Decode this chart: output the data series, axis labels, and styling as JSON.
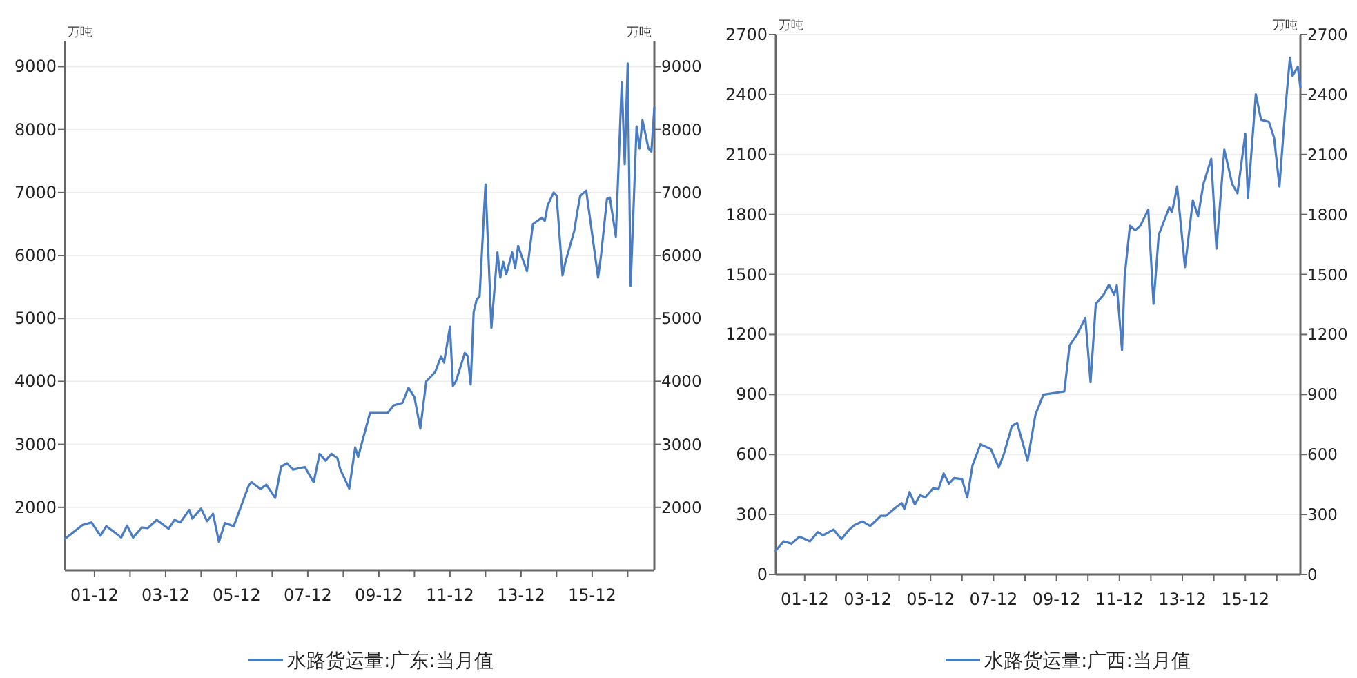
{
  "chart_data": [
    {
      "type": "line",
      "ylabel": "万吨",
      "y2label": "万吨",
      "legend": "bottom",
      "grid": "y",
      "marker": "none",
      "line_style": "solid",
      "xlim": [
        "2001-02",
        "2017-09"
      ],
      "xticks": [
        {
          "value": "2001-12",
          "label": "01-12"
        },
        {
          "value": "2002-12",
          "label": null
        },
        {
          "value": "2003-12",
          "label": "03-12"
        },
        {
          "value": "2004-12",
          "label": null
        },
        {
          "value": "2005-12",
          "label": "05-12"
        },
        {
          "value": "2006-12",
          "label": null
        },
        {
          "value": "2007-12",
          "label": "07-12"
        },
        {
          "value": "2008-12",
          "label": null
        },
        {
          "value": "2009-12",
          "label": "09-12"
        },
        {
          "value": "2010-12",
          "label": null
        },
        {
          "value": "2011-12",
          "label": "11-12"
        },
        {
          "value": "2012-12",
          "label": null
        },
        {
          "value": "2013-12",
          "label": "13-12"
        },
        {
          "value": "2014-12",
          "label": null
        },
        {
          "value": "2015-12",
          "label": "15-12"
        },
        {
          "value": "2016-12",
          "label": null
        }
      ],
      "ylim": [
        1000,
        9400
      ],
      "yticks": [
        2000,
        3000,
        4000,
        5000,
        6000,
        7000,
        8000,
        9000
      ],
      "y2lim": [
        1000,
        9400
      ],
      "y2ticks": [
        2000,
        3000,
        4000,
        5000,
        6000,
        7000,
        8000,
        9000
      ],
      "series": [
        {
          "name": "水路货运量:广东:当月值",
          "color": "#4a7cc4",
          "x": [
            "2001-02",
            "2001-08",
            "2001-11",
            "2002-02",
            "2002-04",
            "2002-06",
            "2002-09",
            "2002-11",
            "2003-01",
            "2003-04",
            "2003-06",
            "2003-09",
            "2004-01",
            "2004-03",
            "2004-05",
            "2004-08",
            "2004-09",
            "2004-12",
            "2005-02",
            "2005-04",
            "2005-06",
            "2005-08",
            "2005-11",
            "2006-04",
            "2006-05",
            "2006-08",
            "2006-10",
            "2007-01",
            "2007-03",
            "2007-05",
            "2007-07",
            "2007-11",
            "2008-02",
            "2008-04",
            "2008-06",
            "2008-08",
            "2008-10",
            "2008-11",
            "2009-02",
            "2009-04",
            "2009-05",
            "2009-09",
            "2010-03",
            "2010-05",
            "2010-08",
            "2010-10",
            "2010-12",
            "2011-02",
            "2011-04",
            "2011-07",
            "2011-09",
            "2011-10",
            "2011-12",
            "2012-01",
            "2012-02",
            "2012-05",
            "2012-06",
            "2012-07",
            "2012-08",
            "2012-09",
            "2012-10",
            "2012-12",
            "2013-02",
            "2013-04",
            "2013-05",
            "2013-06",
            "2013-07",
            "2013-09",
            "2013-10",
            "2013-11",
            "2014-02",
            "2014-04",
            "2014-07",
            "2014-08",
            "2014-09",
            "2014-11",
            "2014-12",
            "2015-02",
            "2015-03",
            "2015-06",
            "2015-07",
            "2015-08",
            "2015-10",
            "2016-02",
            "2016-03",
            "2016-05",
            "2016-06",
            "2016-08",
            "2016-10",
            "2016-11",
            "2016-12",
            "2017-01",
            "2017-03",
            "2017-04",
            "2017-05",
            "2017-07",
            "2017-08",
            "2017-09"
          ],
          "values": [
            1500,
            1720,
            1760,
            1550,
            1700,
            1630,
            1520,
            1710,
            1520,
            1680,
            1670,
            1800,
            1660,
            1800,
            1760,
            1960,
            1820,
            1980,
            1780,
            1900,
            1450,
            1750,
            1700,
            2340,
            2400,
            2290,
            2360,
            2150,
            2650,
            2700,
            2600,
            2640,
            2400,
            2850,
            2740,
            2850,
            2780,
            2600,
            2300,
            2950,
            2800,
            3500,
            3500,
            3620,
            3660,
            3900,
            3750,
            3250,
            4000,
            4150,
            4400,
            4300,
            4870,
            3930,
            4000,
            4450,
            4400,
            3950,
            5100,
            5300,
            5350,
            7130,
            4850,
            6050,
            5650,
            5900,
            5700,
            6050,
            5800,
            6150,
            5750,
            6500,
            6600,
            6550,
            6800,
            7000,
            6950,
            5680,
            5900,
            6400,
            6700,
            6950,
            7030,
            5650,
            6000,
            6900,
            6920,
            6300,
            8750,
            7450,
            9050,
            5520,
            8050,
            7700,
            8150,
            7700,
            7650,
            8350
          ]
        }
      ]
    },
    {
      "type": "line",
      "ylabel": "万吨",
      "y2label": "万吨",
      "legend": "bottom",
      "grid": "y",
      "marker": "none",
      "line_style": "solid",
      "xlim": [
        "2001-01",
        "2017-09"
      ],
      "xticks": [
        {
          "value": "2001-12",
          "label": "01-12"
        },
        {
          "value": "2002-12",
          "label": null
        },
        {
          "value": "2003-12",
          "label": "03-12"
        },
        {
          "value": "2004-12",
          "label": null
        },
        {
          "value": "2005-12",
          "label": "05-12"
        },
        {
          "value": "2006-12",
          "label": null
        },
        {
          "value": "2007-12",
          "label": "07-12"
        },
        {
          "value": "2008-12",
          "label": null
        },
        {
          "value": "2009-12",
          "label": "09-12"
        },
        {
          "value": "2010-12",
          "label": null
        },
        {
          "value": "2011-12",
          "label": "11-12"
        },
        {
          "value": "2012-12",
          "label": null
        },
        {
          "value": "2013-12",
          "label": "13-12"
        },
        {
          "value": "2014-12",
          "label": null
        },
        {
          "value": "2015-12",
          "label": "15-12"
        },
        {
          "value": "2016-12",
          "label": null
        }
      ],
      "ylim": [
        0,
        2700
      ],
      "yticks": [
        0,
        300,
        600,
        900,
        1200,
        1500,
        1800,
        2100,
        2400,
        2700
      ],
      "y2lim": [
        0,
        2700
      ],
      "y2ticks": [
        0,
        300,
        600,
        900,
        1200,
        1500,
        1800,
        2100,
        2400,
        2700
      ],
      "series": [
        {
          "name": "水路货运量:广西:当月值",
          "color": "#4a7cc4",
          "x": [
            "2001-01",
            "2001-04",
            "2001-07",
            "2001-10",
            "2002-02",
            "2002-05",
            "2002-07",
            "2002-11",
            "2003-02",
            "2003-05",
            "2003-07",
            "2003-10",
            "2004-01",
            "2004-05",
            "2004-07",
            "2004-10",
            "2005-01",
            "2005-02",
            "2005-04",
            "2005-06",
            "2005-08",
            "2005-10",
            "2006-01",
            "2006-03",
            "2006-05",
            "2006-07",
            "2006-09",
            "2006-12",
            "2007-02",
            "2007-04",
            "2007-07",
            "2007-11",
            "2008-02",
            "2008-04",
            "2008-07",
            "2008-09",
            "2009-01",
            "2009-04",
            "2009-07",
            "2010-03",
            "2010-05",
            "2010-08",
            "2010-11",
            "2011-01",
            "2011-03",
            "2011-06",
            "2011-08",
            "2011-10",
            "2011-11",
            "2012-01",
            "2012-02",
            "2012-04",
            "2012-06",
            "2012-08",
            "2012-11",
            "2013-01",
            "2013-03",
            "2013-07",
            "2013-08",
            "2013-09",
            "2013-10",
            "2014-01",
            "2014-04",
            "2014-06",
            "2014-08",
            "2014-11",
            "2015-01",
            "2015-04",
            "2015-07",
            "2015-09",
            "2015-12",
            "2016-01",
            "2016-04",
            "2016-06",
            "2016-09",
            "2016-11",
            "2017-01",
            "2017-03",
            "2017-05",
            "2017-06",
            "2017-08",
            "2017-09"
          ],
          "values": [
            120,
            166,
            154,
            189,
            166,
            212,
            196,
            224,
            177,
            224,
            247,
            265,
            242,
            293,
            293,
            327,
            357,
            327,
            412,
            350,
            396,
            385,
            431,
            426,
            505,
            454,
            482,
            477,
            385,
            546,
            650,
            627,
            535,
            604,
            742,
            758,
            569,
            800,
            899,
            915,
            1145,
            1203,
            1283,
            961,
            1353,
            1399,
            1449,
            1399,
            1445,
            1122,
            1491,
            1744,
            1721,
            1744,
            1825,
            1353,
            1698,
            1836,
            1813,
            1871,
            1940,
            1537,
            1871,
            1790,
            1952,
            2078,
            1629,
            2124,
            1952,
            1906,
            2205,
            1883,
            2401,
            2274,
            2263,
            2182,
            1940,
            2286,
            2585,
            2493,
            2539,
            2435
          ]
        }
      ]
    }
  ]
}
